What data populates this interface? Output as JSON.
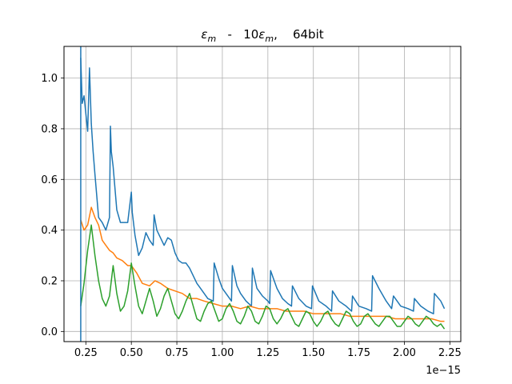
{
  "chart_data": {
    "type": "line",
    "title": "εm   -   10εm,    64bit",
    "title_parts": {
      "eps_symbol": "ε",
      "sub": "m",
      "dash": "-",
      "ten": "10",
      "suffix": ",",
      "bits": "64bit"
    },
    "xlabel": "",
    "ylabel": "",
    "x_offset_label": "1e−15",
    "xlim": [
      0.13,
      2.31
    ],
    "ylim": [
      -0.04,
      1.125
    ],
    "xticks": [
      0.25,
      0.5,
      0.75,
      1.0,
      1.25,
      1.5,
      1.75,
      2.0,
      2.25
    ],
    "xtick_labels": [
      "0.25",
      "0.50",
      "0.75",
      "1.00",
      "1.25",
      "1.50",
      "1.75",
      "2.00",
      "2.25"
    ],
    "yticks": [
      0.0,
      0.2,
      0.4,
      0.6,
      0.8,
      1.0
    ],
    "ytick_labels": [
      "0.0",
      "0.2",
      "0.4",
      "0.6",
      "0.8",
      "1.0"
    ],
    "grid": true,
    "vline_x": 0.222,
    "colors": {
      "blue": "#1f77b4",
      "orange": "#ff7f0e",
      "green": "#2ca02c",
      "grid": "#b0b0b0"
    },
    "series": [
      {
        "color": "#1f77b4",
        "x": [
          0.222,
          0.23,
          0.24,
          0.25,
          0.26,
          0.27,
          0.28,
          0.29,
          0.3,
          0.32,
          0.34,
          0.36,
          0.38,
          0.385,
          0.39,
          0.4,
          0.42,
          0.44,
          0.46,
          0.48,
          0.5,
          0.505,
          0.52,
          0.54,
          0.56,
          0.58,
          0.6,
          0.62,
          0.625,
          0.64,
          0.66,
          0.68,
          0.7,
          0.72,
          0.74,
          0.76,
          0.78,
          0.8,
          0.82,
          0.84,
          0.86,
          0.88,
          0.9,
          0.92,
          0.95,
          0.955,
          0.98,
          1.0,
          1.02,
          1.05,
          1.055,
          1.08,
          1.1,
          1.13,
          1.16,
          1.165,
          1.19,
          1.22,
          1.25,
          1.26,
          1.265,
          1.3,
          1.33,
          1.36,
          1.38,
          1.385,
          1.42,
          1.46,
          1.49,
          1.495,
          1.53,
          1.57,
          1.6,
          1.605,
          1.64,
          1.68,
          1.71,
          1.715,
          1.75,
          1.79,
          1.82,
          1.825,
          1.86,
          1.9,
          1.93,
          1.94,
          1.98,
          2.02,
          2.05,
          2.055,
          2.09,
          2.13,
          2.16,
          2.165,
          2.2,
          2.22
        ],
        "y": [
          1.08,
          0.9,
          0.93,
          0.86,
          0.79,
          1.04,
          0.82,
          0.71,
          0.62,
          0.45,
          0.43,
          0.4,
          0.45,
          0.81,
          0.71,
          0.65,
          0.48,
          0.43,
          0.43,
          0.43,
          0.55,
          0.47,
          0.38,
          0.3,
          0.33,
          0.39,
          0.36,
          0.34,
          0.46,
          0.4,
          0.37,
          0.34,
          0.37,
          0.36,
          0.31,
          0.28,
          0.27,
          0.27,
          0.25,
          0.22,
          0.19,
          0.17,
          0.15,
          0.13,
          0.12,
          0.27,
          0.21,
          0.17,
          0.15,
          0.12,
          0.26,
          0.18,
          0.15,
          0.12,
          0.1,
          0.25,
          0.17,
          0.14,
          0.12,
          0.11,
          0.24,
          0.17,
          0.13,
          0.11,
          0.1,
          0.18,
          0.13,
          0.1,
          0.09,
          0.18,
          0.12,
          0.1,
          0.08,
          0.16,
          0.12,
          0.1,
          0.08,
          0.14,
          0.1,
          0.09,
          0.08,
          0.22,
          0.17,
          0.12,
          0.09,
          0.14,
          0.1,
          0.09,
          0.08,
          0.13,
          0.1,
          0.08,
          0.07,
          0.15,
          0.12,
          0.09
        ]
      },
      {
        "color": "#ff7f0e",
        "x": [
          0.222,
          0.24,
          0.26,
          0.28,
          0.3,
          0.32,
          0.34,
          0.36,
          0.38,
          0.4,
          0.42,
          0.45,
          0.48,
          0.5,
          0.53,
          0.56,
          0.6,
          0.63,
          0.66,
          0.7,
          0.74,
          0.78,
          0.82,
          0.86,
          0.9,
          0.95,
          1.0,
          1.05,
          1.1,
          1.15,
          1.2,
          1.25,
          1.3,
          1.35,
          1.4,
          1.45,
          1.5,
          1.55,
          1.6,
          1.65,
          1.7,
          1.75,
          1.8,
          1.85,
          1.9,
          1.95,
          2.0,
          2.05,
          2.1,
          2.15,
          2.2,
          2.22
        ],
        "y": [
          0.44,
          0.4,
          0.42,
          0.49,
          0.45,
          0.42,
          0.36,
          0.34,
          0.32,
          0.31,
          0.29,
          0.28,
          0.26,
          0.26,
          0.23,
          0.19,
          0.18,
          0.2,
          0.19,
          0.17,
          0.16,
          0.15,
          0.13,
          0.13,
          0.12,
          0.11,
          0.1,
          0.1,
          0.09,
          0.1,
          0.09,
          0.09,
          0.09,
          0.08,
          0.08,
          0.08,
          0.07,
          0.07,
          0.07,
          0.07,
          0.06,
          0.06,
          0.06,
          0.06,
          0.06,
          0.05,
          0.05,
          0.05,
          0.05,
          0.05,
          0.04,
          0.04
        ]
      },
      {
        "color": "#2ca02c",
        "x": [
          0.222,
          0.24,
          0.26,
          0.28,
          0.3,
          0.32,
          0.34,
          0.36,
          0.38,
          0.4,
          0.42,
          0.44,
          0.46,
          0.48,
          0.5,
          0.52,
          0.54,
          0.56,
          0.58,
          0.6,
          0.62,
          0.64,
          0.66,
          0.68,
          0.7,
          0.72,
          0.74,
          0.76,
          0.78,
          0.8,
          0.82,
          0.84,
          0.86,
          0.88,
          0.9,
          0.92,
          0.94,
          0.96,
          0.98,
          1.0,
          1.02,
          1.04,
          1.06,
          1.08,
          1.1,
          1.12,
          1.14,
          1.16,
          1.18,
          1.2,
          1.22,
          1.24,
          1.26,
          1.28,
          1.3,
          1.32,
          1.34,
          1.36,
          1.38,
          1.4,
          1.42,
          1.44,
          1.46,
          1.48,
          1.5,
          1.52,
          1.54,
          1.56,
          1.58,
          1.6,
          1.62,
          1.64,
          1.66,
          1.68,
          1.7,
          1.72,
          1.74,
          1.76,
          1.78,
          1.8,
          1.82,
          1.84,
          1.86,
          1.88,
          1.9,
          1.92,
          1.94,
          1.96,
          1.98,
          2.0,
          2.02,
          2.04,
          2.06,
          2.08,
          2.1,
          2.12,
          2.14,
          2.16,
          2.18,
          2.2,
          2.22
        ],
        "y": [
          0.1,
          0.19,
          0.32,
          0.42,
          0.3,
          0.2,
          0.13,
          0.1,
          0.14,
          0.26,
          0.15,
          0.08,
          0.1,
          0.16,
          0.27,
          0.18,
          0.1,
          0.07,
          0.12,
          0.17,
          0.12,
          0.06,
          0.09,
          0.14,
          0.17,
          0.12,
          0.07,
          0.05,
          0.08,
          0.12,
          0.15,
          0.1,
          0.05,
          0.04,
          0.08,
          0.11,
          0.12,
          0.08,
          0.04,
          0.05,
          0.09,
          0.11,
          0.08,
          0.04,
          0.03,
          0.06,
          0.1,
          0.08,
          0.04,
          0.03,
          0.06,
          0.1,
          0.09,
          0.05,
          0.03,
          0.05,
          0.08,
          0.09,
          0.06,
          0.03,
          0.02,
          0.05,
          0.08,
          0.07,
          0.04,
          0.02,
          0.04,
          0.07,
          0.08,
          0.05,
          0.03,
          0.02,
          0.05,
          0.08,
          0.07,
          0.04,
          0.02,
          0.03,
          0.06,
          0.07,
          0.05,
          0.03,
          0.02,
          0.04,
          0.06,
          0.06,
          0.04,
          0.02,
          0.02,
          0.04,
          0.06,
          0.05,
          0.03,
          0.02,
          0.04,
          0.06,
          0.05,
          0.03,
          0.02,
          0.03,
          0.01
        ]
      }
    ]
  }
}
